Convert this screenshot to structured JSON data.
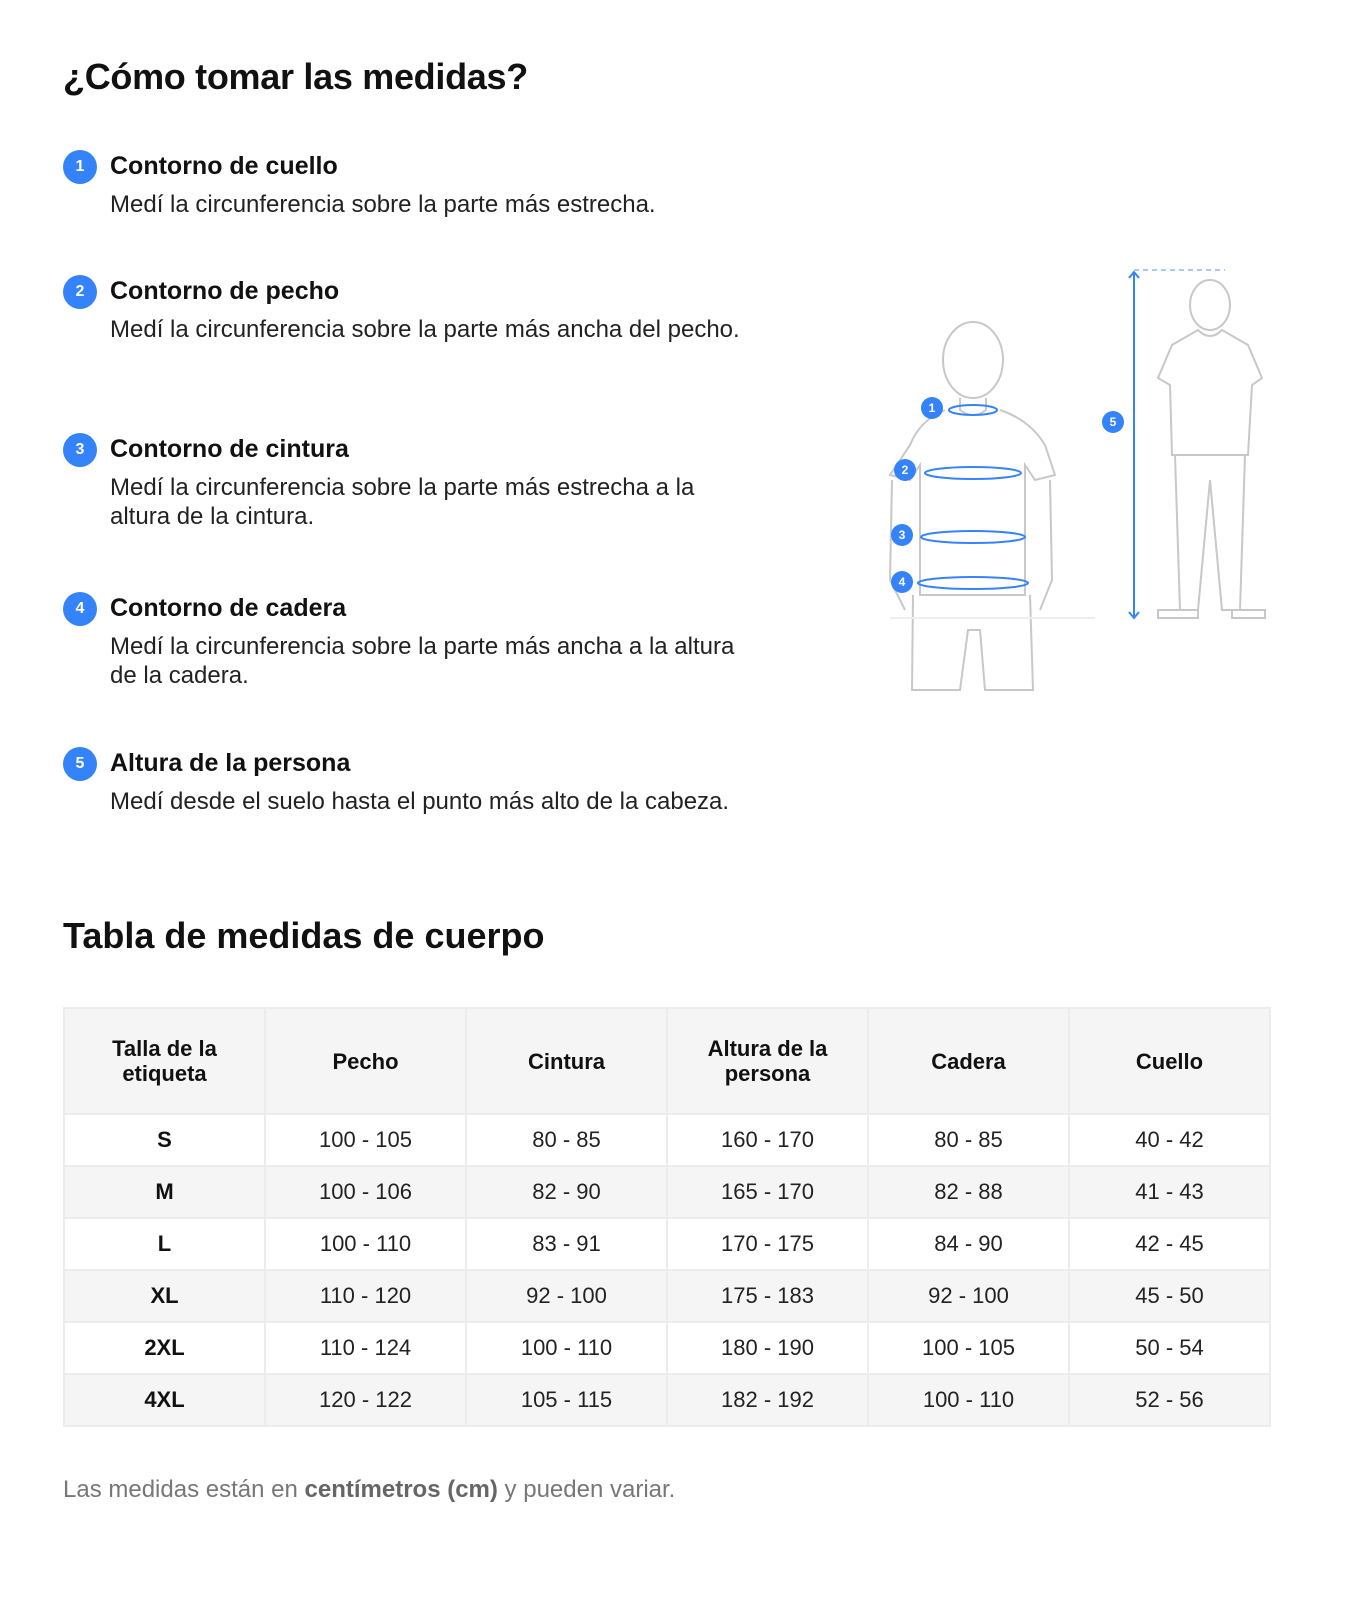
{
  "title": "¿Cómo tomar las medidas?",
  "steps": [
    {
      "n": "1",
      "title": "Contorno de cuello",
      "desc": "Medí la circunferencia sobre la parte más estrecha."
    },
    {
      "n": "2",
      "title": "Contorno de pecho",
      "desc": "Medí la circunferencia sobre la parte más ancha del pecho."
    },
    {
      "n": "3",
      "title": "Contorno de cintura",
      "desc": "Medí la circunferencia sobre la parte más estrecha a la altura de la cintura."
    },
    {
      "n": "4",
      "title": "Contorno de cadera",
      "desc": "Medí la circunferencia sobre la parte más ancha a la altura de la cadera."
    },
    {
      "n": "5",
      "title": "Altura de la persona",
      "desc": "Medí desde el suelo hasta el punto más alto de la cabeza."
    }
  ],
  "illustration": {
    "markers": [
      "1",
      "2",
      "3",
      "4",
      "5"
    ],
    "accent": "#3483fa"
  },
  "table_title": "Tabla de medidas de cuerpo",
  "table": {
    "headers": [
      "Talla de la etiqueta",
      "Pecho",
      "Cintura",
      "Altura de la persona",
      "Cadera",
      "Cuello"
    ],
    "rows": [
      [
        "S",
        "100 - 105",
        "80 - 85",
        "160 - 170",
        "80 - 85",
        "40 - 42"
      ],
      [
        "M",
        "100 - 106",
        "82 - 90",
        "165 - 170",
        "82 - 88",
        "41 - 43"
      ],
      [
        "L",
        "100 - 110",
        "83 - 91",
        "170 - 175",
        "84 - 90",
        "42 - 45"
      ],
      [
        "XL",
        "110 - 120",
        "92 - 100",
        "175 - 183",
        "92 - 100",
        "45 - 50"
      ],
      [
        "2XL",
        "110 - 124",
        "100 - 110",
        "180 - 190",
        "100 - 105",
        "50 - 54"
      ],
      [
        "4XL",
        "120 - 122",
        "105 - 115",
        "182 - 192",
        "100 - 110",
        "52 - 56"
      ]
    ]
  },
  "footnote": {
    "pre": "Las medidas están en ",
    "bold": "centímetros (cm)",
    "post": " y pueden variar."
  }
}
